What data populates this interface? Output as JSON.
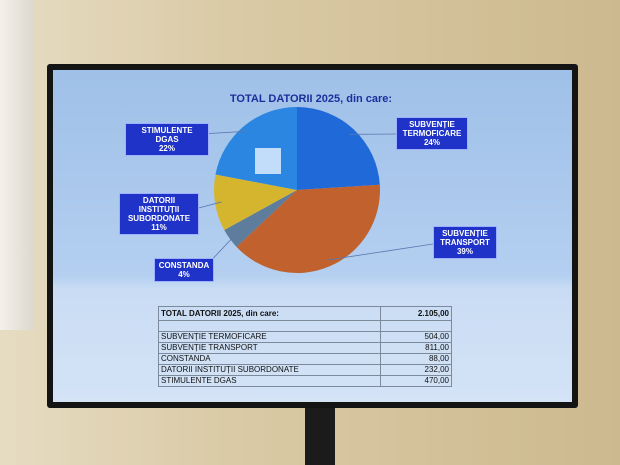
{
  "chart_data": {
    "type": "pie",
    "title": "TOTAL DATORII 2025, din care:",
    "categories": [
      "SUBVENȚIE TERMOFICARE",
      "SUBVENȚIE TRANSPORT",
      "CONSTANDA",
      "DATORII INSTITUȚII SUBORDONATE",
      "STIMULENTE DGAS"
    ],
    "values": [
      24,
      39,
      4,
      11,
      22
    ],
    "value_labels": [
      "24%",
      "39%",
      "4%",
      "11%",
      "22%"
    ],
    "colors": [
      "#1f6ad8",
      "#c0612e",
      "#5e7d9c",
      "#d6b52e",
      "#2a86e0"
    ]
  },
  "table": {
    "rows": [
      [
        "TOTAL DATORII 2025, din care:",
        "2.105,00"
      ],
      [
        "SUBVENȚIE TERMOFICARE",
        "504,00"
      ],
      [
        "SUBVENȚIE TRANSPORT",
        "811,00"
      ],
      [
        "CONSTANDA",
        "88,00"
      ],
      [
        "DATORII INSTITUȚII SUBORDONATE",
        "232,00"
      ],
      [
        "STIMULENTE DGAS",
        "470,00"
      ]
    ]
  }
}
